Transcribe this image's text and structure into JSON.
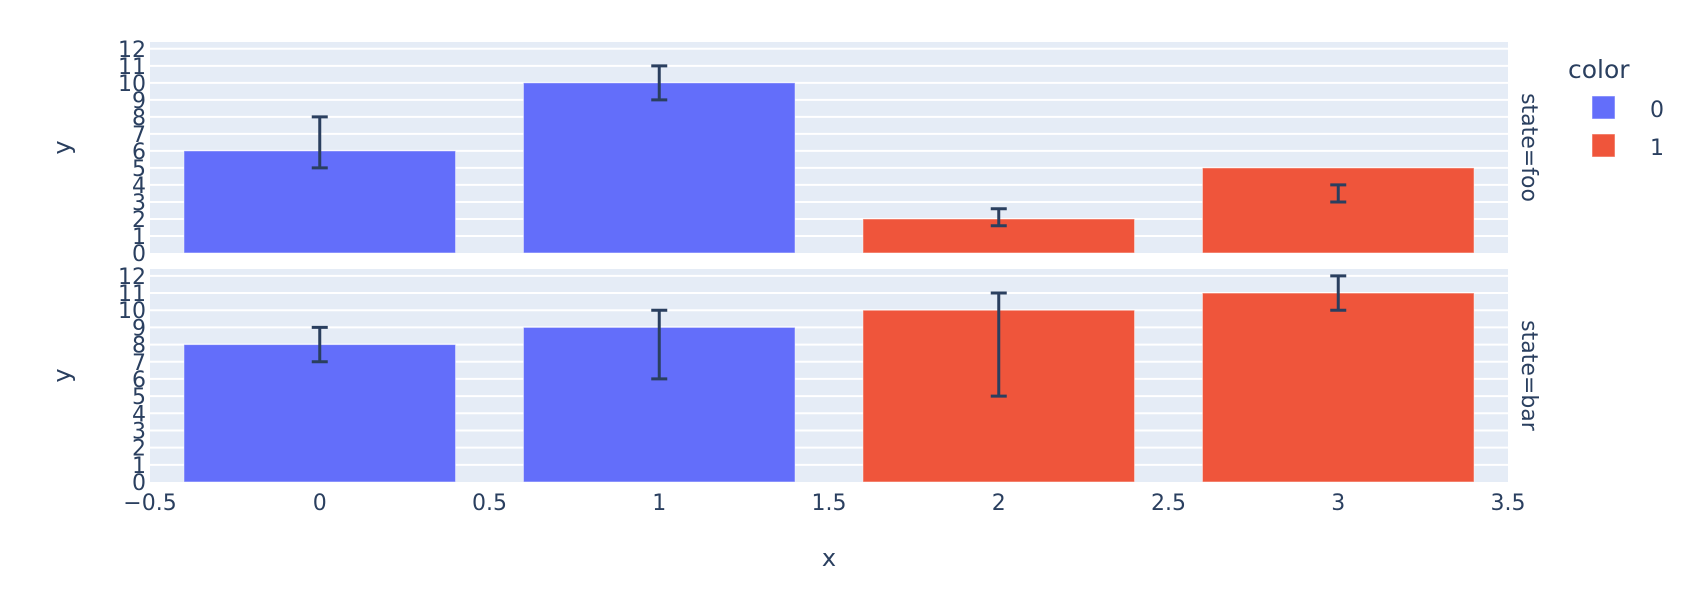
{
  "chart_data": {
    "type": "bar",
    "facet_row": "state",
    "facets": [
      {
        "label": "state=foo",
        "bars": [
          {
            "x": 0,
            "y": 6,
            "err_lo": 5,
            "err_hi": 8,
            "color_group": "0"
          },
          {
            "x": 1,
            "y": 10,
            "err_lo": 9,
            "err_hi": 11,
            "color_group": "0"
          },
          {
            "x": 2,
            "y": 2,
            "err_lo": 1.6,
            "err_hi": 2.6,
            "color_group": "1"
          },
          {
            "x": 3,
            "y": 5,
            "err_lo": 3,
            "err_hi": 4,
            "color_group": "1"
          }
        ]
      },
      {
        "label": "state=bar",
        "bars": [
          {
            "x": 0,
            "y": 8,
            "err_lo": 7,
            "err_hi": 9,
            "color_group": "0"
          },
          {
            "x": 1,
            "y": 9,
            "err_lo": 6,
            "err_hi": 10,
            "color_group": "0"
          },
          {
            "x": 2,
            "y": 10,
            "err_lo": 5,
            "err_hi": 11,
            "color_group": "1"
          },
          {
            "x": 3,
            "y": 11,
            "err_lo": 10,
            "err_hi": 12,
            "color_group": "1"
          }
        ]
      }
    ],
    "series": [
      {
        "name": "0",
        "color": "#636efa",
        "x": [
          0,
          1
        ],
        "values_foo": [
          6,
          10
        ],
        "values_bar": [
          8,
          9
        ]
      },
      {
        "name": "1",
        "color": "#ef553b",
        "x": [
          2,
          3
        ],
        "values_foo": [
          2,
          5
        ],
        "values_bar": [
          10,
          11
        ]
      }
    ],
    "xlabel": "x",
    "ylabel": "y",
    "xlim": [
      -0.5,
      3.5
    ],
    "ylim": [
      0,
      12.4
    ],
    "x_ticks": [
      "−0.5",
      "0",
      "0.5",
      "1",
      "1.5",
      "2",
      "2.5",
      "3",
      "3.5"
    ],
    "x_tick_values": [
      -0.5,
      0,
      0.5,
      1,
      1.5,
      2,
      2.5,
      3,
      3.5
    ],
    "y_ticks": [
      "0",
      "1",
      "2",
      "3",
      "4",
      "5",
      "6",
      "7",
      "8",
      "9",
      "10",
      "11",
      "12"
    ],
    "y_tick_values": [
      0,
      1,
      2,
      3,
      4,
      5,
      6,
      7,
      8,
      9,
      10,
      11,
      12
    ],
    "bar_width": 0.8,
    "grid": true,
    "legend": {
      "title": "color",
      "position": "right",
      "entries": [
        "0",
        "1"
      ]
    }
  },
  "colors": {
    "plot_bg": "#e5ecf6",
    "grid": "#ffffff",
    "text": "#2a3f5f",
    "error_bar": "#2a3f5f"
  }
}
